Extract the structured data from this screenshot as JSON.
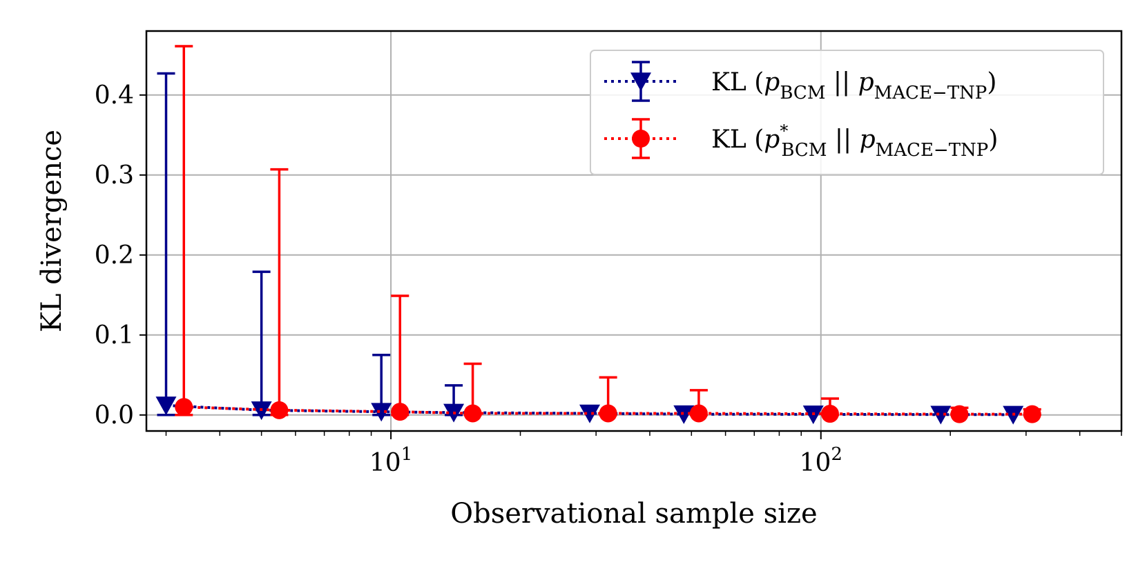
{
  "chart_data": {
    "type": "scatter",
    "title": "",
    "xlabel": "Observational sample size",
    "ylabel": "KL divergence",
    "xscale": "log",
    "xlim": [
      2.7,
      500
    ],
    "ylim": [
      -0.02,
      0.48
    ],
    "x_major_ticks": [
      10,
      100
    ],
    "x_major_tick_labels": [
      {
        "base": "10",
        "exp": "1"
      },
      {
        "base": "10",
        "exp": "2"
      }
    ],
    "y_ticks": [
      0.0,
      0.1,
      0.2,
      0.3,
      0.4
    ],
    "y_tick_labels": [
      "0.0",
      "0.1",
      "0.2",
      "0.3",
      "0.4"
    ],
    "grid": true,
    "legend_position": "top-right",
    "series": [
      {
        "name": "KL (p_BCM || p_MACE−TNP)",
        "label_math": {
          "prefix": "KL (",
          "p1": "p",
          "sub1": "BCM",
          "sup1": "",
          "sep": "||",
          "p2": "p",
          "sub2": "MACE−TNP",
          "suffix": ")"
        },
        "color": "#00008b",
        "marker": "triangle-down",
        "linestyle": "dotted",
        "x": [
          3,
          5,
          9.5,
          14,
          29,
          48,
          96,
          190,
          280
        ],
        "y": [
          0.012,
          0.006,
          0.004,
          0.003,
          0.002,
          0.001,
          0.0008,
          0.0005,
          0.0004
        ],
        "err_upper": [
          0.415,
          0.173,
          0.071,
          0.034,
          0.0,
          0.0,
          0.0,
          0.0,
          0.0
        ]
      },
      {
        "name": "KL (p*_BCM || p_MACE−TNP)",
        "label_math": {
          "prefix": "KL (",
          "p1": "p",
          "sub1": "BCM",
          "sup1": "*",
          "sep": "||",
          "p2": "p",
          "sub2": "MACE−TNP",
          "suffix": ")"
        },
        "color": "#ff0000",
        "marker": "circle",
        "linestyle": "dotted",
        "x": [
          3.3,
          5.5,
          10.5,
          15.5,
          32,
          52,
          105,
          210,
          310
        ],
        "y": [
          0.01,
          0.006,
          0.004,
          0.002,
          0.002,
          0.002,
          0.0015,
          0.001,
          0.001
        ],
        "err_upper": [
          0.451,
          0.301,
          0.145,
          0.062,
          0.045,
          0.029,
          0.019,
          0.008,
          0.006
        ]
      }
    ]
  }
}
